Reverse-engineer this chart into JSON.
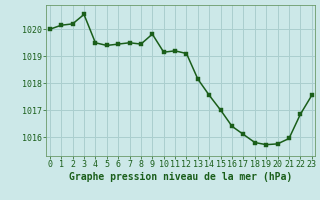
{
  "x": [
    0,
    1,
    2,
    3,
    4,
    5,
    6,
    7,
    8,
    9,
    10,
    11,
    12,
    13,
    14,
    15,
    16,
    17,
    18,
    19,
    20,
    21,
    22,
    23
  ],
  "y": [
    1020.0,
    1020.15,
    1020.2,
    1020.55,
    1019.5,
    1019.4,
    1019.45,
    1019.5,
    1019.45,
    1019.82,
    1019.15,
    1019.2,
    1019.1,
    1018.15,
    1017.55,
    1017.0,
    1016.4,
    1016.1,
    1015.8,
    1015.72,
    1015.75,
    1015.95,
    1016.85,
    1017.55
  ],
  "xlabel": "Graphe pression niveau de la mer (hPa)",
  "background_color": "#cce8e8",
  "grid_color": "#aacece",
  "line_color": "#1a5e1a",
  "marker_color": "#1a5e1a",
  "tick_label_color": "#1a5e1a",
  "axis_color": "#6a9a6a",
  "xlabel_color": "#1a5e1a",
  "ylim": [
    1015.3,
    1020.9
  ],
  "yticks": [
    1016,
    1017,
    1018,
    1019,
    1020
  ],
  "xticks": [
    0,
    1,
    2,
    3,
    4,
    5,
    6,
    7,
    8,
    9,
    10,
    11,
    12,
    13,
    14,
    15,
    16,
    17,
    18,
    19,
    20,
    21,
    22,
    23
  ],
  "xlabel_fontsize": 7.0,
  "tick_fontsize": 6.0,
  "line_width": 1.1,
  "marker_size": 2.5
}
